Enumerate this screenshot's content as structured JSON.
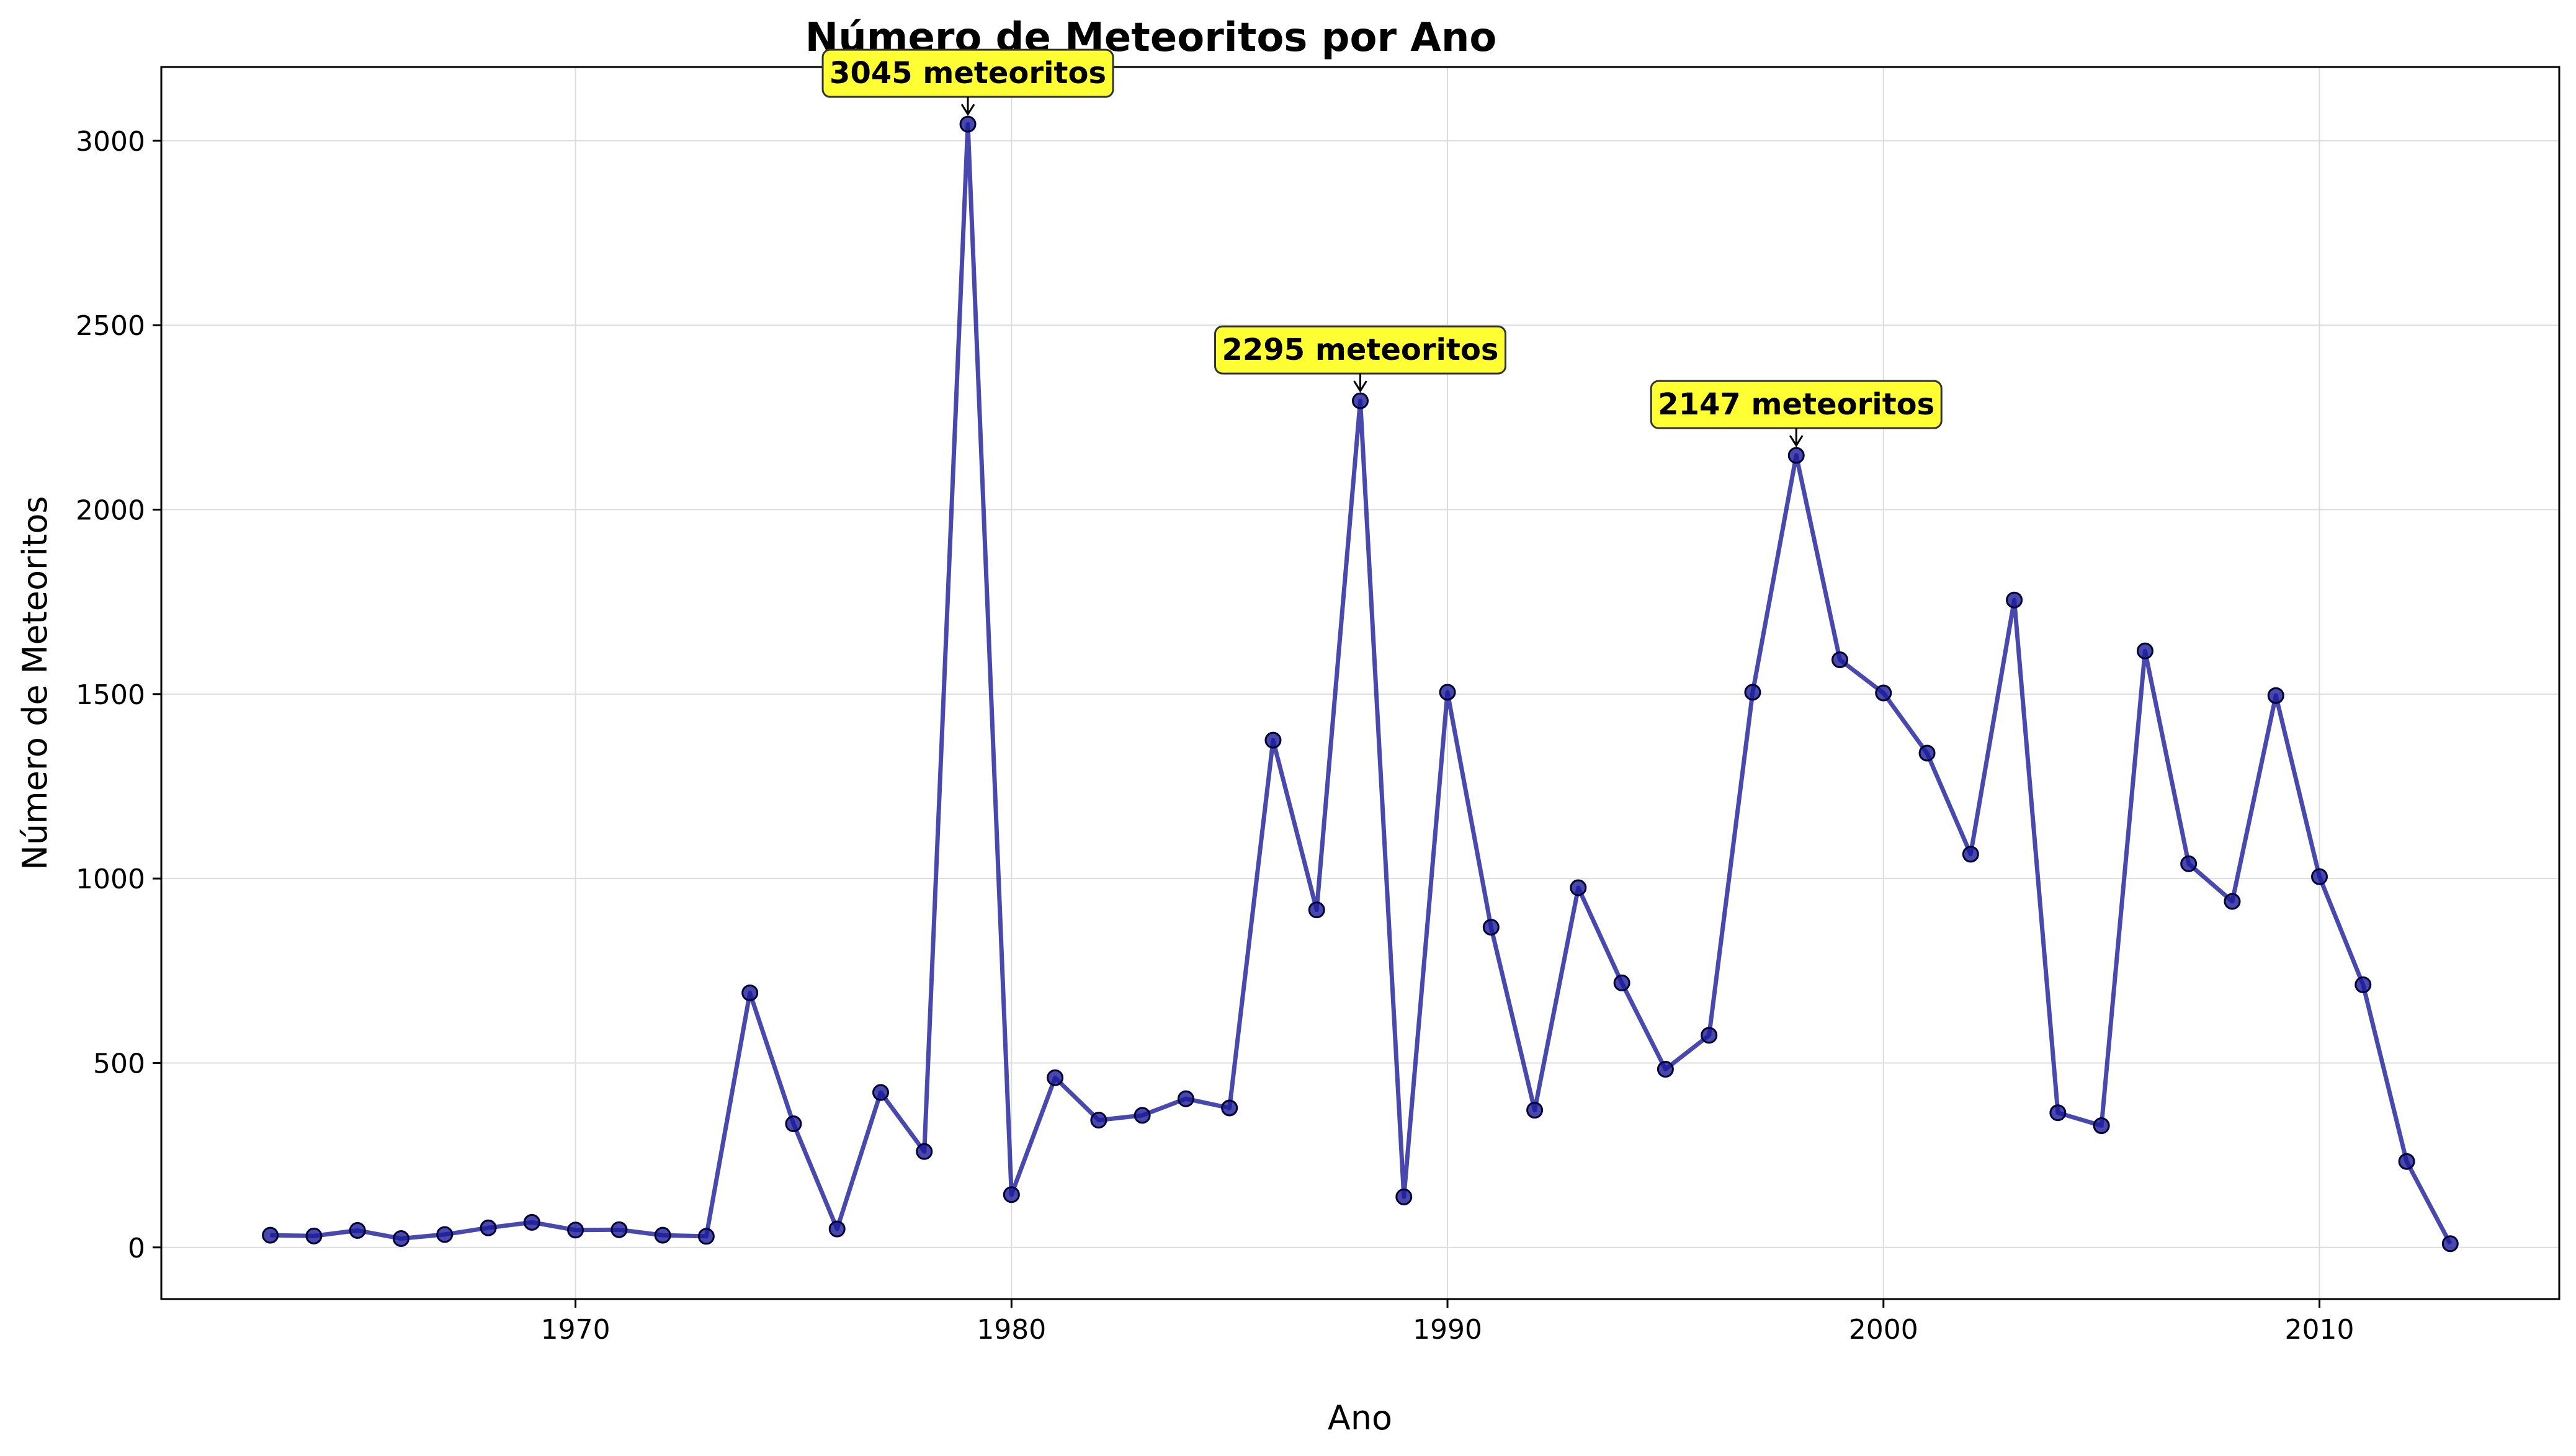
{
  "chart_data": {
    "type": "line",
    "title": "Número de Meteoritos por Ano",
    "xlabel": "Ano",
    "ylabel": "Número de Meteoritos",
    "xlim": [
      1960.5,
      2015.5
    ],
    "ylim": [
      -140,
      3200
    ],
    "xticks": [
      1970,
      1980,
      1990,
      2000,
      2010
    ],
    "yticks": [
      0,
      500,
      1000,
      1500,
      2000,
      2500,
      3000
    ],
    "grid": true,
    "line_color": "#1a1a99",
    "annotation_color": "#ffff33",
    "x": [
      1963,
      1964,
      1965,
      1966,
      1967,
      1968,
      1969,
      1970,
      1971,
      1972,
      1973,
      1974,
      1975,
      1976,
      1977,
      1978,
      1979,
      1980,
      1981,
      1982,
      1983,
      1984,
      1985,
      1986,
      1987,
      1988,
      1989,
      1990,
      1991,
      1992,
      1993,
      1994,
      1995,
      1996,
      1997,
      1998,
      1999,
      2000,
      2001,
      2002,
      2003,
      2004,
      2005,
      2006,
      2007,
      2008,
      2009,
      2010,
      2011,
      2012,
      2013
    ],
    "y": [
      33,
      31,
      46,
      24,
      35,
      53,
      68,
      47,
      48,
      33,
      30,
      690,
      335,
      50,
      420,
      260,
      3045,
      143,
      460,
      345,
      358,
      403,
      378,
      1375,
      915,
      2295,
      137,
      1505,
      868,
      372,
      975,
      717,
      483,
      575,
      1505,
      2147,
      1593,
      1503,
      1340,
      1066,
      1755,
      365,
      330,
      1617,
      1040,
      938,
      1496,
      1005,
      712,
      233,
      10
    ],
    "annotations": [
      {
        "x": 1979,
        "y": 3045,
        "text": "3045 meteoritos"
      },
      {
        "x": 1988,
        "y": 2295,
        "text": "2295 meteoritos"
      },
      {
        "x": 1998,
        "y": 2147,
        "text": "2147 meteoritos"
      }
    ]
  }
}
